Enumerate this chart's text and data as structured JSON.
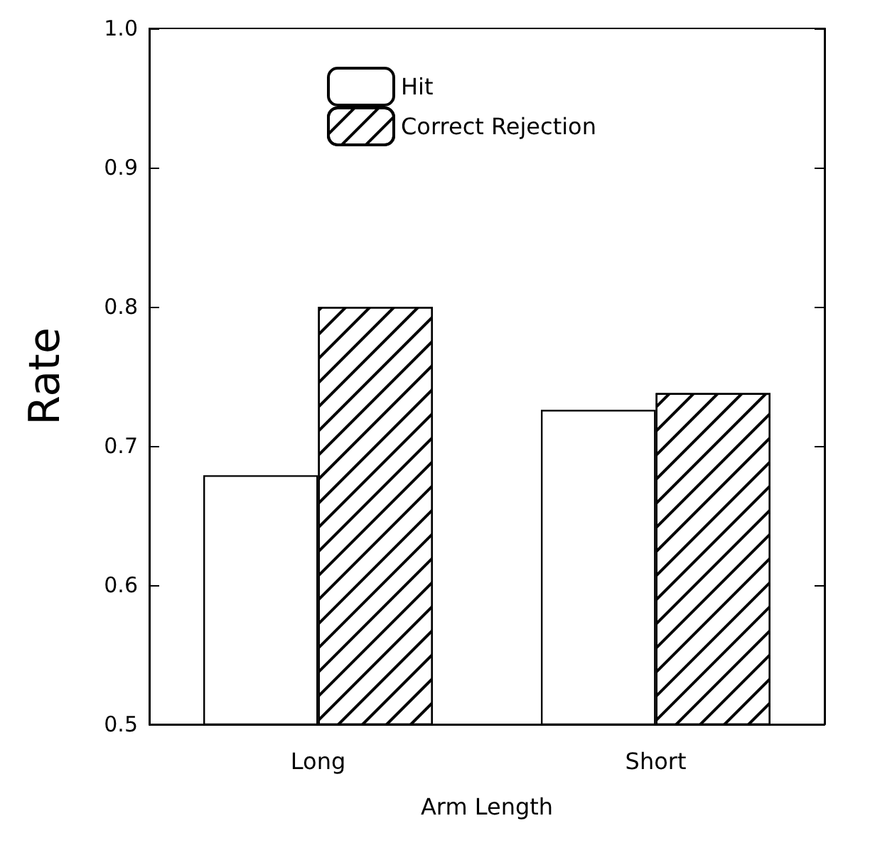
{
  "chart_data": {
    "type": "bar",
    "xlabel": "Arm Length",
    "ylabel": "Rate",
    "categories": [
      "Long",
      "Short"
    ],
    "series": [
      {
        "name": "Hit",
        "color": "#ffffff",
        "values": [
          0.679,
          0.726
        ]
      },
      {
        "name": "Correct Rejection",
        "color": "#ffffff",
        "values": [
          0.8,
          0.738
        ]
      }
    ],
    "ylim": [
      0.5,
      1.0
    ],
    "yticks": [
      0.5,
      0.6,
      0.7,
      0.8,
      0.9,
      {
        "value": 1,
        "label": "1.0"
      }
    ],
    "grid": false,
    "legend": "top"
  }
}
